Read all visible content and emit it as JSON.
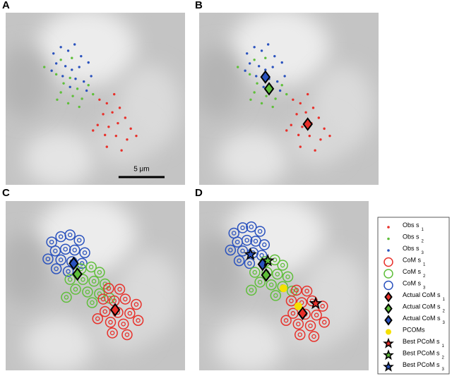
{
  "chart_data": [
    {
      "type": "scatter",
      "label": "A",
      "xlim": [
        0,
        19.5
      ],
      "ylim": [
        19,
        0
      ],
      "scale_bar": {
        "value": 5,
        "label": "5 μm"
      },
      "series": [
        {
          "color": "#2a52be",
          "marker": "dot",
          "x": [
            5.2,
            6.0,
            6.8,
            7.5,
            8.2,
            5.5,
            6.5,
            7.2,
            8.0,
            9.0,
            6.2,
            7.6,
            8.5,
            5.0,
            9.3,
            7.0,
            8.8
          ],
          "y": [
            4.5,
            3.8,
            4.2,
            3.5,
            4.8,
            5.6,
            5.9,
            6.3,
            6.0,
            5.5,
            7.0,
            7.3,
            7.6,
            6.4,
            7.0,
            8.2,
            8.6
          ]
        },
        {
          "color": "#5fbf3a",
          "marker": "dot",
          "x": [
            4.2,
            5.5,
            6.3,
            7.0,
            7.8,
            6.0,
            7.3,
            8.3,
            5.6,
            9.5,
            6.8,
            8.0,
            6.0,
            7.2,
            9.0
          ],
          "y": [
            6.0,
            6.8,
            7.8,
            7.2,
            8.4,
            8.8,
            9.2,
            9.5,
            9.6,
            9.0,
            10.0,
            10.4,
            5.2,
            5.0,
            8.0
          ]
        },
        {
          "color": "#e8302a",
          "marker": "dot",
          "x": [
            10.2,
            11.0,
            10.6,
            11.6,
            12.4,
            13.0,
            10.0,
            11.2,
            12.2,
            13.6,
            10.8,
            12.0,
            13.2,
            11.0,
            12.6,
            9.5,
            14.2,
            11.8
          ],
          "y": [
            9.6,
            10.0,
            11.2,
            11.0,
            10.5,
            11.6,
            12.4,
            12.6,
            12.2,
            12.8,
            13.5,
            13.6,
            14.0,
            14.8,
            15.2,
            13.0,
            13.6,
            9.0
          ]
        }
      ]
    },
    {
      "type": "scatter",
      "label": "B",
      "xlim": [
        0,
        19.5
      ],
      "ylim": [
        19,
        0
      ],
      "series": [
        {
          "color": "#2a52be",
          "marker": "dot",
          "x": [
            5.2,
            6.0,
            6.8,
            7.5,
            8.2,
            5.5,
            6.5,
            7.2,
            8.0,
            9.0,
            6.2,
            7.6,
            8.5,
            5.0,
            9.3,
            7.0,
            8.8
          ],
          "y": [
            4.5,
            3.8,
            4.2,
            3.5,
            4.8,
            5.6,
            5.9,
            6.3,
            6.0,
            5.5,
            7.0,
            7.3,
            7.6,
            6.4,
            7.0,
            8.2,
            8.6
          ]
        },
        {
          "color": "#5fbf3a",
          "marker": "dot",
          "x": [
            4.2,
            5.5,
            6.3,
            7.0,
            7.8,
            6.0,
            7.3,
            8.3,
            5.6,
            9.5,
            6.8,
            8.0,
            6.0,
            7.2,
            9.0
          ],
          "y": [
            6.0,
            6.8,
            7.8,
            7.2,
            8.4,
            8.8,
            9.2,
            9.5,
            9.6,
            9.0,
            10.0,
            10.4,
            5.2,
            5.0,
            8.0
          ]
        },
        {
          "color": "#e8302a",
          "marker": "dot",
          "x": [
            10.2,
            11.0,
            10.6,
            11.6,
            12.4,
            13.0,
            10.0,
            11.2,
            12.2,
            13.6,
            10.8,
            12.0,
            13.2,
            11.0,
            12.6,
            9.5,
            14.2,
            11.8
          ],
          "y": [
            9.6,
            10.0,
            11.2,
            11.0,
            10.5,
            11.6,
            12.4,
            12.6,
            12.2,
            12.8,
            13.5,
            13.6,
            14.0,
            14.8,
            15.2,
            13.0,
            13.6,
            9.0
          ]
        },
        {
          "color": "#2a52be",
          "marker": "diamond",
          "x": [
            7.2
          ],
          "y": [
            7.1
          ]
        },
        {
          "color": "#5fbf3a",
          "marker": "diamond",
          "x": [
            7.6
          ],
          "y": [
            8.4
          ]
        },
        {
          "color": "#e8302a",
          "marker": "diamond",
          "x": [
            11.8
          ],
          "y": [
            12.3
          ]
        }
      ]
    },
    {
      "type": "scatter",
      "label": "C",
      "xlim": [
        0,
        19.5
      ],
      "ylim": [
        19,
        0
      ],
      "series": [
        {
          "color": "#2a52be",
          "marker": "ring",
          "x": [
            5.0,
            6.0,
            7.0,
            8.0,
            5.4,
            6.5,
            7.5,
            8.6,
            4.6,
            6.0,
            7.2,
            8.3,
            5.5,
            6.8
          ],
          "y": [
            4.6,
            4.0,
            3.8,
            4.4,
            5.6,
            5.4,
            5.5,
            5.8,
            6.5,
            6.6,
            6.8,
            7.0,
            7.6,
            7.9
          ]
        },
        {
          "color": "#5fbf3a",
          "marker": "ring",
          "x": [
            8.2,
            9.3,
            10.2,
            7.0,
            8.4,
            9.6,
            10.8,
            7.6,
            8.9,
            10.2,
            6.6,
            9.4,
            11.3
          ],
          "y": [
            7.6,
            7.4,
            8.0,
            8.8,
            8.8,
            9.0,
            9.3,
            9.9,
            10.2,
            10.4,
            10.8,
            11.4,
            10.9
          ]
        },
        {
          "color": "#e8302a",
          "marker": "ring",
          "x": [
            11.2,
            12.4,
            10.6,
            11.8,
            13.0,
            14.2,
            10.8,
            12.2,
            13.5,
            11.4,
            12.8,
            14.4,
            11.6,
            13.2,
            10.0
          ],
          "y": [
            9.8,
            9.9,
            11.0,
            11.2,
            11.0,
            11.6,
            12.4,
            12.5,
            12.6,
            13.6,
            13.8,
            13.4,
            14.8,
            15.0,
            13.2
          ]
        },
        {
          "color": "#2a52be",
          "marker": "diamond",
          "x": [
            7.4
          ],
          "y": [
            7.0
          ]
        },
        {
          "color": "#5fbf3a",
          "marker": "diamond",
          "x": [
            7.8
          ],
          "y": [
            8.2
          ]
        },
        {
          "color": "#e8302a",
          "marker": "diamond",
          "x": [
            11.9
          ],
          "y": [
            12.2
          ]
        }
      ]
    },
    {
      "type": "scatter",
      "label": "D",
      "xlim": [
        0,
        19.5
      ],
      "ylim": [
        19,
        0
      ],
      "series": [
        {
          "color": "#2a52be",
          "marker": "ring",
          "x": [
            4.0,
            5.0,
            6.0,
            7.0,
            4.4,
            5.5,
            6.5,
            7.5,
            3.6,
            5.0,
            6.2,
            7.2,
            4.6,
            5.8
          ],
          "y": [
            3.6,
            3.0,
            2.9,
            3.4,
            4.6,
            4.4,
            4.5,
            4.9,
            5.5,
            5.6,
            5.8,
            6.1,
            6.7,
            7.0
          ]
        },
        {
          "color": "#5fbf3a",
          "marker": "ring",
          "x": [
            7.6,
            8.7,
            9.6,
            6.4,
            7.8,
            9.0,
            10.2,
            7.0,
            8.3,
            9.6,
            6.0,
            8.8,
            10.7
          ],
          "y": [
            6.8,
            6.6,
            7.2,
            8.0,
            8.0,
            8.2,
            8.5,
            9.1,
            9.4,
            9.6,
            10.0,
            10.6,
            10.1
          ]
        },
        {
          "color": "#e8302a",
          "marker": "ring",
          "x": [
            11.2,
            12.4,
            10.6,
            11.8,
            13.0,
            14.2,
            10.8,
            12.2,
            13.5,
            11.4,
            12.8,
            14.4,
            11.6,
            13.2,
            10.0
          ],
          "y": [
            10.0,
            10.1,
            11.2,
            11.4,
            11.2,
            11.8,
            12.6,
            12.7,
            12.8,
            13.8,
            14.0,
            13.6,
            15.0,
            15.2,
            13.4
          ]
        },
        {
          "color": "#2a52be",
          "marker": "diamond",
          "x": [
            7.3
          ],
          "y": [
            7.1
          ]
        },
        {
          "color": "#5fbf3a",
          "marker": "diamond",
          "x": [
            7.7
          ],
          "y": [
            8.3
          ]
        },
        {
          "color": "#e8302a",
          "marker": "diamond",
          "x": [
            11.9
          ],
          "y": [
            12.6
          ]
        },
        {
          "color": "#f5e000",
          "marker": "disc",
          "x": [
            9.7,
            11.4
          ],
          "y": [
            9.8,
            11.8
          ]
        },
        {
          "color": "#e8302a",
          "marker": "star",
          "x": [
            13.4
          ],
          "y": [
            11.5
          ]
        },
        {
          "color": "#5fbf3a",
          "marker": "star",
          "x": [
            7.9
          ],
          "y": [
            6.7
          ]
        },
        {
          "color": "#2a52be",
          "marker": "star",
          "x": [
            5.9
          ],
          "y": [
            6.0
          ]
        }
      ]
    }
  ],
  "legend": {
    "entries": [
      {
        "name": "Obs s",
        "subscript": "1",
        "color": "#e8302a",
        "marker": "dot"
      },
      {
        "name": "Obs s",
        "subscript": "2",
        "color": "#5fbf3a",
        "marker": "dot"
      },
      {
        "name": "Obs s",
        "subscript": "3",
        "color": "#2a52be",
        "marker": "dot"
      },
      {
        "name": "CoM s",
        "subscript": "1",
        "color": "#e8302a",
        "marker": "ring"
      },
      {
        "name": "CoM s",
        "subscript": "2",
        "color": "#5fbf3a",
        "marker": "ring"
      },
      {
        "name": "CoM s",
        "subscript": "3",
        "color": "#2a52be",
        "marker": "ring"
      },
      {
        "name": "Actual CoM s",
        "subscript": "1",
        "color": "#e8302a",
        "marker": "diamond"
      },
      {
        "name": "Actual CoM s",
        "subscript": "2",
        "color": "#5fbf3a",
        "marker": "diamond"
      },
      {
        "name": "Actual CoM s",
        "subscript": "3",
        "color": "#2a52be",
        "marker": "diamond"
      },
      {
        "name": "PCOMs",
        "color": "#f5e000",
        "marker": "disc"
      },
      {
        "name": "Best PCoM s",
        "subscript": "1",
        "color": "#e8302a",
        "marker": "star"
      },
      {
        "name": "Best PCoM s",
        "subscript": "2",
        "color": "#5fbf3a",
        "marker": "star"
      },
      {
        "name": "Best PCoM s",
        "subscript": "3",
        "color": "#2a52be",
        "marker": "star"
      }
    ]
  }
}
